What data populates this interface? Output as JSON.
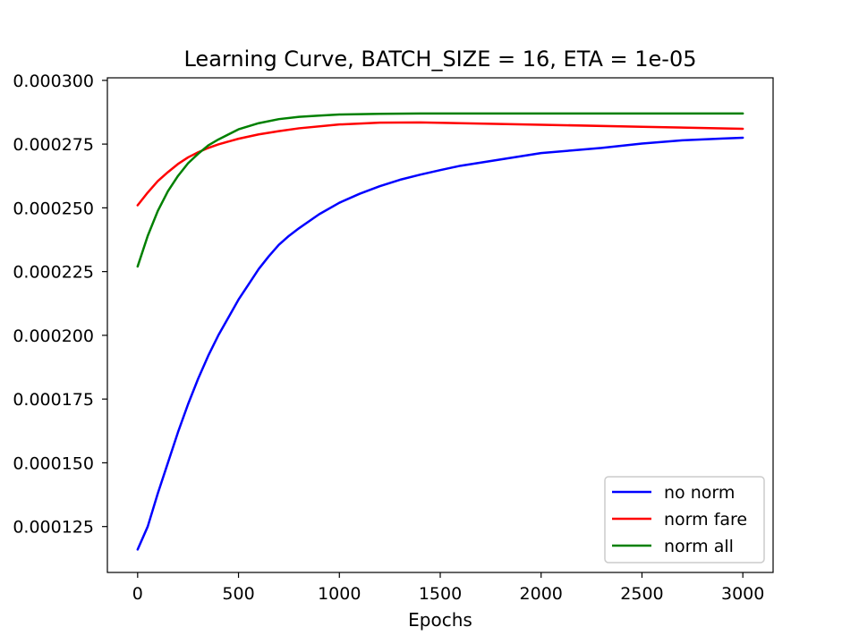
{
  "chart_data": {
    "type": "line",
    "title": "Learning Curve, BATCH_SIZE = 16, ETA = 1e-05",
    "xlabel": "Epochs",
    "ylabel": "",
    "xlim": [
      -150,
      3150
    ],
    "ylim": [
      0.000107,
      0.000301
    ],
    "xticks": [
      0,
      500,
      1000,
      1500,
      2000,
      2500,
      3000
    ],
    "xtick_labels": [
      "0",
      "500",
      "1000",
      "1500",
      "2000",
      "2500",
      "3000"
    ],
    "yticks": [
      0.000125,
      0.00015,
      0.000175,
      0.0002,
      0.000225,
      0.00025,
      0.000275,
      0.0003
    ],
    "ytick_labels": [
      "0.000125",
      "0.000150",
      "0.000175",
      "0.000200",
      "0.000225",
      "0.000250",
      "0.000275",
      "0.000300"
    ],
    "grid": false,
    "legend_position": "lower-right",
    "series": [
      {
        "name": "no norm",
        "color": "#0000ff",
        "x": [
          0,
          50,
          100,
          150,
          200,
          250,
          300,
          350,
          400,
          450,
          500,
          550,
          600,
          650,
          700,
          750,
          800,
          900,
          1000,
          1100,
          1200,
          1300,
          1400,
          1500,
          1600,
          1800,
          2000,
          2150,
          2300,
          2500,
          2700,
          2900,
          3000
        ],
        "y": [
          0.000116,
          0.000125,
          0.000138,
          0.00015,
          0.000162,
          0.000173,
          0.000183,
          0.000192,
          0.0002,
          0.000207,
          0.000214,
          0.00022,
          0.000226,
          0.000231,
          0.0002355,
          0.000239,
          0.000242,
          0.0002475,
          0.000252,
          0.0002555,
          0.0002585,
          0.000261,
          0.000263,
          0.0002648,
          0.0002665,
          0.000269,
          0.0002715,
          0.0002725,
          0.0002735,
          0.0002752,
          0.0002765,
          0.0002772,
          0.0002775
        ]
      },
      {
        "name": "norm fare",
        "color": "#ff0000",
        "x": [
          0,
          50,
          100,
          150,
          200,
          250,
          300,
          350,
          400,
          500,
          600,
          700,
          800,
          1000,
          1200,
          1400,
          1600,
          2000,
          2500,
          3000
        ],
        "y": [
          0.000251,
          0.000256,
          0.0002605,
          0.000264,
          0.0002672,
          0.0002698,
          0.0002718,
          0.0002735,
          0.0002749,
          0.0002771,
          0.0002788,
          0.0002801,
          0.0002812,
          0.0002827,
          0.0002834,
          0.0002835,
          0.0002832,
          0.0002826,
          0.0002818,
          0.000281
        ]
      },
      {
        "name": "norm all",
        "color": "#008000",
        "x": [
          0,
          50,
          100,
          150,
          200,
          250,
          300,
          350,
          400,
          500,
          600,
          700,
          800,
          900,
          1000,
          1200,
          1400,
          1600,
          2000,
          2500,
          3000
        ],
        "y": [
          0.000227,
          0.000239,
          0.0002488,
          0.0002565,
          0.0002625,
          0.0002675,
          0.0002712,
          0.0002745,
          0.0002768,
          0.0002808,
          0.0002832,
          0.0002848,
          0.0002857,
          0.0002862,
          0.0002866,
          0.0002869,
          0.000287,
          0.000287,
          0.000287,
          0.000287,
          0.000287
        ]
      }
    ]
  }
}
